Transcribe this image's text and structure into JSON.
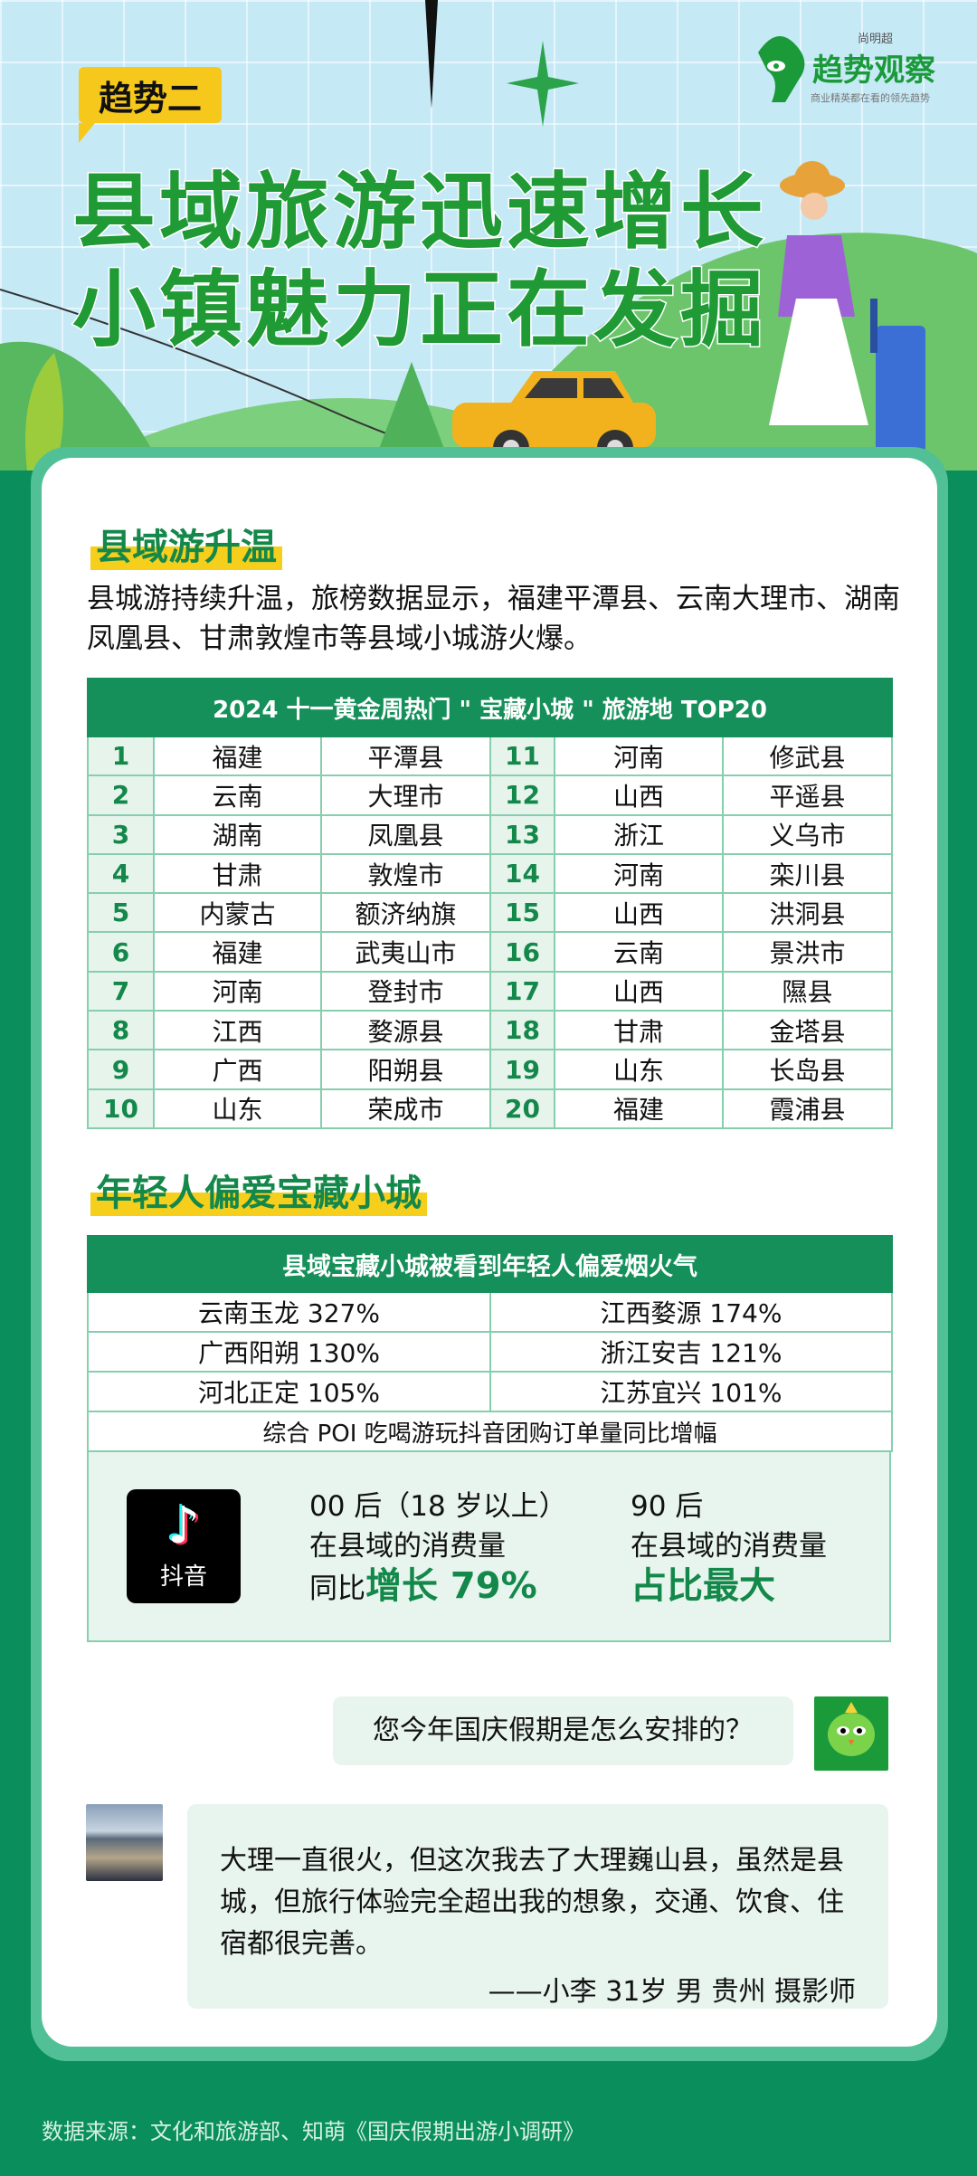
{
  "header": {
    "badge": "趋势二",
    "title_line1": "县域旅游迅速增长",
    "title_line2": "小镇魅力正在发掘",
    "logo": {
      "top": "尚明超",
      "main": "趋势观察",
      "tagline": "商业精英都在看的领先趋势"
    }
  },
  "section1": {
    "heading": "县域游升温",
    "body": "县城游持续升温，旅榜数据显示，福建平潭县、云南大理市、湖南凤凰县、甘肃敦煌市等县域小城游火爆。",
    "table": {
      "title": "2024 十一黄金周热门 \" 宝藏小城 \" 旅游地 TOP20",
      "rows": [
        [
          "1",
          "福建",
          "平潭县",
          "11",
          "河南",
          "修武县"
        ],
        [
          "2",
          "云南",
          "大理市",
          "12",
          "山西",
          "平遥县"
        ],
        [
          "3",
          "湖南",
          "凤凰县",
          "13",
          "浙江",
          "义乌市"
        ],
        [
          "4",
          "甘肃",
          "敦煌市",
          "14",
          "河南",
          "栾川县"
        ],
        [
          "5",
          "内蒙古",
          "额济纳旗",
          "15",
          "山西",
          "洪洞县"
        ],
        [
          "6",
          "福建",
          "武夷山市",
          "16",
          "云南",
          "景洪市"
        ],
        [
          "7",
          "河南",
          "登封市",
          "17",
          "山西",
          "隰县"
        ],
        [
          "8",
          "江西",
          "婺源县",
          "18",
          "甘肃",
          "金塔县"
        ],
        [
          "9",
          "广西",
          "阳朔县",
          "19",
          "山东",
          "长岛县"
        ],
        [
          "10",
          "山东",
          "荣成市",
          "20",
          "福建",
          "霞浦县"
        ]
      ]
    }
  },
  "section2": {
    "heading": "年轻人偏爱宝藏小城",
    "table": {
      "title": "县域宝藏小城被看到年轻人偏爱烟火气",
      "rows": [
        [
          "云南玉龙 327%",
          "江西婺源 174%"
        ],
        [
          "广西阳朔 130%",
          "浙江安吉 121%"
        ],
        [
          "河北正定 105%",
          "江苏宜兴 101%"
        ]
      ],
      "footer": "综合 POI 吃喝游玩抖音团购订单量同比增幅"
    },
    "stats": {
      "app_label": "抖音",
      "left": {
        "line1": "00 后（18 岁以上）",
        "line2": "在县域的消费量",
        "line3_prefix": "同比",
        "line3_highlight": "增长 79%"
      },
      "right": {
        "line1": "90 后",
        "line2": "在县域的消费量",
        "line3_highlight": "占比最大"
      }
    }
  },
  "chat": {
    "question": "您今年国庆假期是怎么安排的？",
    "answer": "大理一直很火，但这次我去了大理巍山县，虽然是县城，但旅行体验完全超出我的想象，交通、饮食、住宿都很完善。",
    "signature": "——小李 31岁 男 贵州 摄影师"
  },
  "footer": {
    "source": "数据来源：文化和旅游部、知萌《国庆假期出游小调研》"
  },
  "colors": {
    "primary": "#16905a",
    "highlight": "#f6cf1d",
    "title_green": "#1f9a35",
    "bg": "#0a8f5c"
  }
}
